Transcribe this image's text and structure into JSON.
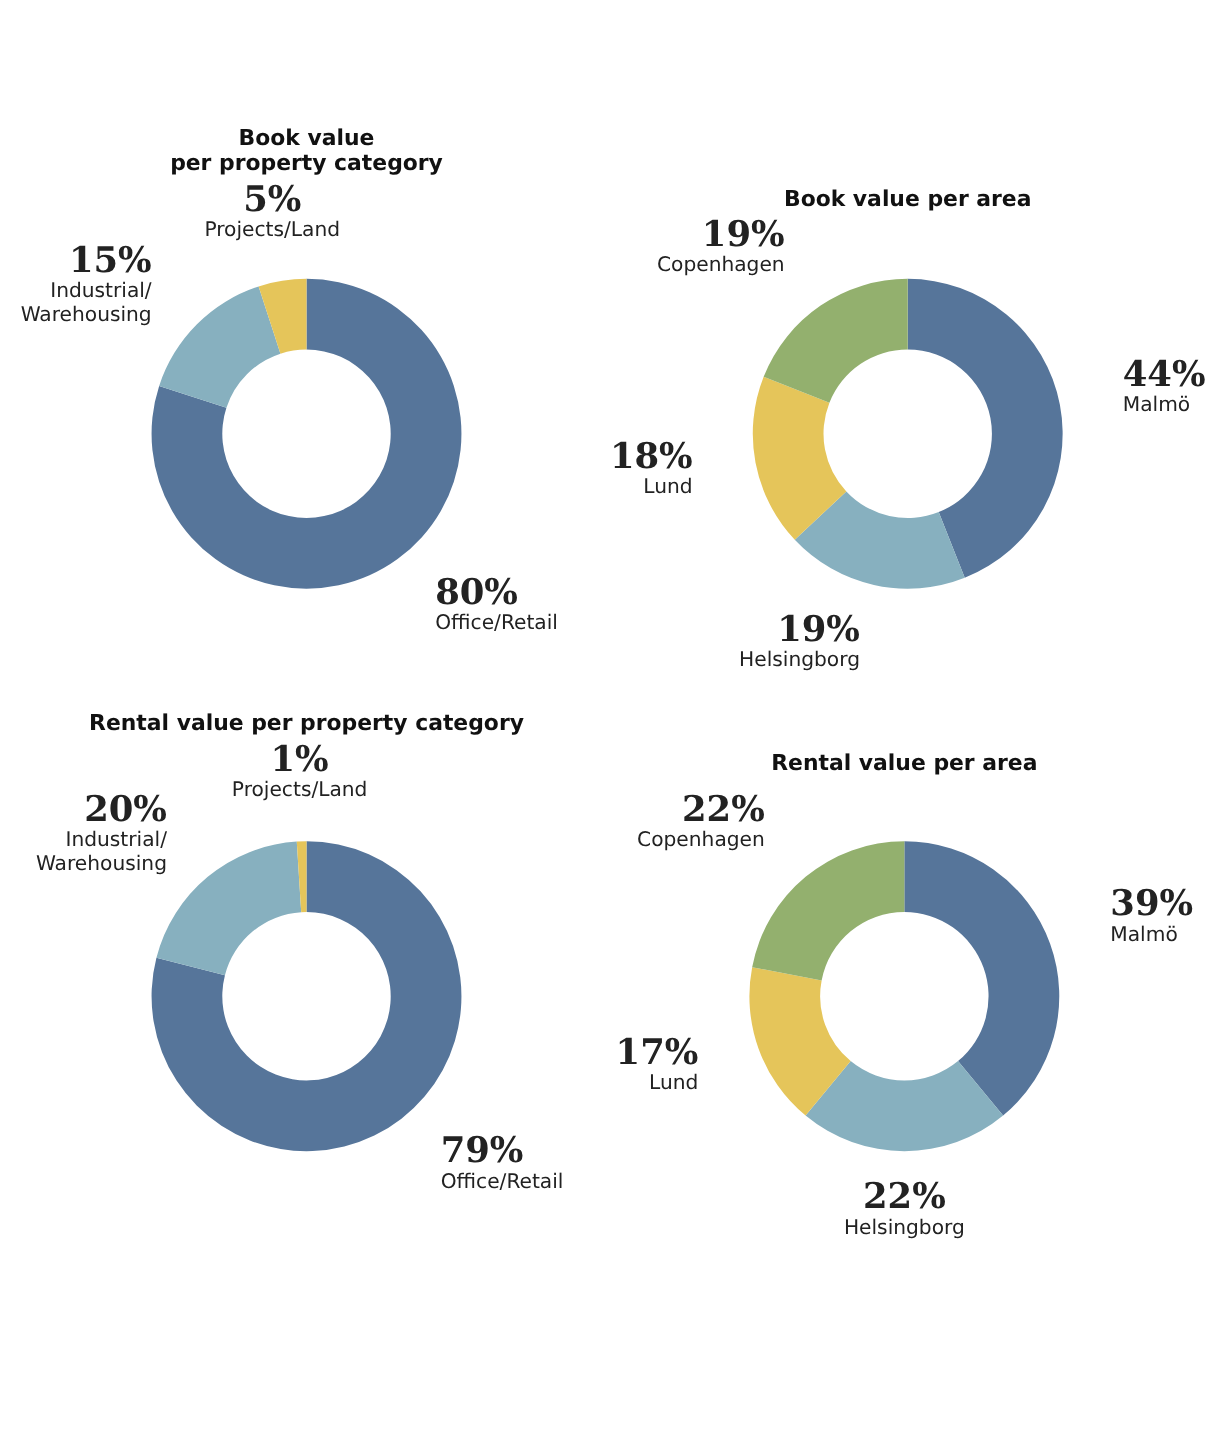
{
  "chart_data": [
    {
      "type": "donut",
      "title": "Book value\nper property category",
      "categories": [
        "Office/Retail",
        "Industrial/\nWarehousing",
        "Projects/Land"
      ],
      "values": [
        80,
        15,
        5
      ],
      "colors": [
        "#56759a",
        "#87b0bf",
        "#e5c55a"
      ],
      "value_labels": [
        "80%",
        "15%",
        "5%"
      ]
    },
    {
      "type": "donut",
      "title": "Book value per area",
      "categories": [
        "Malmö",
        "Helsingborg",
        "Lund",
        "Copenhagen"
      ],
      "values": [
        44,
        19,
        18,
        19
      ],
      "colors": [
        "#56759a",
        "#87b0bf",
        "#e5c55a",
        "#93b06e"
      ],
      "value_labels": [
        "44%",
        "19%",
        "18%",
        "19%"
      ]
    },
    {
      "type": "donut",
      "title": "Rental value per property category",
      "categories": [
        "Office/Retail",
        "Industrial/\nWarehousing",
        "Projects/Land"
      ],
      "values": [
        79,
        20,
        1
      ],
      "colors": [
        "#56759a",
        "#87b0bf",
        "#e5c55a"
      ],
      "value_labels": [
        "79%",
        "20%",
        "1%"
      ]
    },
    {
      "type": "donut",
      "title": "Rental value per area",
      "categories": [
        "Malmö",
        "Helsingborg",
        "Lund",
        "Copenhagen"
      ],
      "values": [
        39,
        22,
        17,
        22
      ],
      "colors": [
        "#56759a",
        "#87b0bf",
        "#e5c55a",
        "#93b06e"
      ],
      "value_labels": [
        "39%",
        "22%",
        "17%",
        "22%"
      ]
    }
  ]
}
